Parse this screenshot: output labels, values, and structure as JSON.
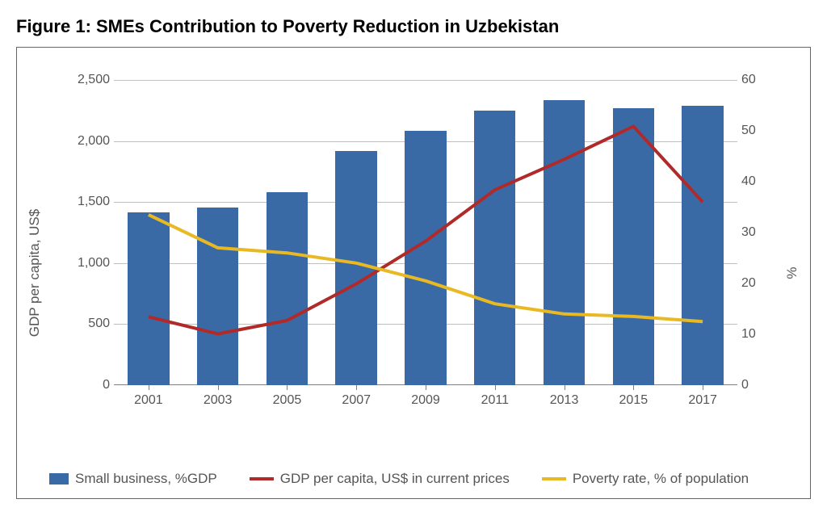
{
  "figure": {
    "title": "Figure 1: SMEs Contribution to Poverty Reduction in Uzbekistan",
    "title_fontsize": 22,
    "title_weight": "bold",
    "title_color": "#000000",
    "background_color": "#ffffff",
    "border_color": "#666666",
    "grid_color": "#c0c0c0",
    "axis_text_color": "#555555",
    "tick_fontsize": 16,
    "axis_title_fontsize": 17,
    "y_left_title": "GDP per capita, US$",
    "y_right_title": "%",
    "y_left": {
      "min": 0,
      "max": 2500,
      "ticks": [
        0,
        500,
        1000,
        1500,
        2000,
        2500
      ],
      "labels": [
        "0",
        "500",
        "1,000",
        "1,500",
        "2,000",
        "2,500"
      ]
    },
    "y_right": {
      "min": 0,
      "max": 60,
      "ticks": [
        0,
        10,
        20,
        30,
        40,
        50,
        60
      ],
      "labels": [
        "0",
        "10",
        "20",
        "30",
        "40",
        "50",
        "60"
      ]
    },
    "categories": [
      "2001",
      "2003",
      "2005",
      "2007",
      "2009",
      "2011",
      "2013",
      "2015",
      "2017"
    ],
    "bars": {
      "label": "Small business, %GDP",
      "axis": "right",
      "values": [
        34,
        35,
        38,
        46,
        50,
        54,
        56,
        54.5,
        55
      ],
      "color": "#3a6aa6",
      "bar_width_frac": 0.6
    },
    "lines": [
      {
        "label": "GDP per capita, US$ in current prices",
        "axis": "left",
        "values": [
          560,
          420,
          530,
          830,
          1180,
          1600,
          1850,
          2120,
          1500
        ],
        "color": "#b02a2a",
        "width": 4
      },
      {
        "label": "Poverty rate, % of population",
        "axis": "right",
        "values": [
          33.5,
          27,
          26,
          24,
          20.5,
          16,
          14,
          13.5,
          12.5
        ],
        "color": "#e8b923",
        "width": 4
      }
    ],
    "legend_fontsize": 17
  }
}
